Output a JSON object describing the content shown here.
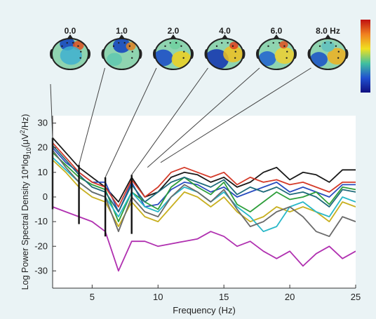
{
  "chart_data": {
    "type": "line",
    "ylabel": "Log Power Spectral Density 10*log",
    "ylabel_sub": "10",
    "ylabel_tail": "(μV",
    "ylabel_sup": "2",
    "ylabel_end": "/Hz)",
    "xlabel": "Frequency (Hz)",
    "xlim": [
      2,
      25
    ],
    "ylim": [
      -37,
      33
    ],
    "x_ticks": [
      5,
      10,
      15,
      20,
      25
    ],
    "y_ticks": [
      30,
      20,
      10,
      0,
      -10,
      -20,
      -30
    ],
    "grid": false,
    "x": [
      2,
      3,
      4,
      5,
      6,
      7,
      8,
      9,
      10,
      11,
      12,
      13,
      14,
      15,
      16,
      17,
      18,
      19,
      20,
      21,
      22,
      23,
      24,
      25
    ],
    "series": [
      {
        "color": "#1a1a1a",
        "values": [
          24,
          18,
          12,
          8,
          4,
          -2,
          8,
          0,
          2,
          8,
          10,
          9,
          6,
          8,
          4,
          6,
          10,
          12,
          7,
          10,
          9,
          6,
          11,
          11
        ]
      },
      {
        "color": "#2a4dbf",
        "values": [
          20,
          14,
          10,
          6,
          6,
          -6,
          6,
          -4,
          -3,
          3,
          6,
          5,
          2,
          4,
          0,
          2,
          4,
          6,
          2,
          4,
          2,
          0,
          5,
          5
        ]
      },
      {
        "color": "#2e9e3a",
        "values": [
          18,
          13,
          8,
          5,
          3,
          -10,
          2,
          -2,
          -5,
          4,
          8,
          4,
          1,
          6,
          -3,
          -6,
          -2,
          2,
          -1,
          0,
          2,
          -3,
          4,
          3
        ]
      },
      {
        "color": "#d43b2a",
        "values": [
          22,
          16,
          10,
          6,
          4,
          -4,
          7,
          0,
          4,
          10,
          12,
          10,
          8,
          10,
          5,
          8,
          6,
          7,
          5,
          6,
          4,
          2,
          6,
          6
        ]
      },
      {
        "color": "#c8b020",
        "values": [
          15,
          10,
          4,
          0,
          -2,
          -12,
          -2,
          -8,
          -10,
          -4,
          2,
          0,
          -4,
          0,
          -6,
          -10,
          -8,
          -4,
          -6,
          -4,
          -6,
          -10,
          -2,
          -4
        ]
      },
      {
        "color": "#b030b0",
        "values": [
          -4,
          -6,
          -8,
          -10,
          -14,
          -30,
          -18,
          -18,
          -20,
          -19,
          -18,
          -17,
          -14,
          -16,
          -20,
          -18,
          -22,
          -25,
          -22,
          -28,
          -23,
          -20,
          -25,
          -22
        ]
      },
      {
        "color": "#2ab8c8",
        "values": [
          16,
          11,
          6,
          2,
          0,
          -8,
          2,
          -4,
          -6,
          0,
          4,
          2,
          -2,
          2,
          -4,
          -8,
          -14,
          -12,
          -4,
          -2,
          -6,
          -8,
          0,
          -2
        ]
      },
      {
        "color": "#1e6b7a",
        "values": [
          21,
          15,
          9,
          4,
          2,
          -6,
          5,
          -2,
          2,
          6,
          8,
          6,
          4,
          7,
          1,
          4,
          2,
          4,
          1,
          2,
          0,
          -4,
          3,
          2
        ]
      },
      {
        "color": "#6a6a6a",
        "values": [
          19,
          12,
          6,
          2,
          0,
          -14,
          0,
          -6,
          -8,
          0,
          5,
          2,
          -2,
          3,
          -5,
          -12,
          -10,
          -6,
          -4,
          -8,
          -14,
          -16,
          -8,
          -10
        ]
      }
    ],
    "vlines": [
      {
        "x": 2,
        "y1": -5,
        "y2": 24
      },
      {
        "x": 4,
        "y1": -11,
        "y2": 13
      },
      {
        "x": 6,
        "y1": -16,
        "y2": 8
      },
      {
        "x": 8,
        "y1": -15,
        "y2": 9
      }
    ],
    "topomaps": [
      {
        "label": "0.0",
        "links_to_x": 2,
        "link_y": 24,
        "blobs": [
          {
            "dx": -0.15,
            "dy": -0.65,
            "r": 0.35,
            "color": "#1040c0"
          },
          {
            "dx": 0.45,
            "dy": -0.55,
            "r": 0.25,
            "color": "#e05020"
          },
          {
            "dx": 0.05,
            "dy": 0.1,
            "r": 0.5,
            "color": "#40b0d0"
          }
        ]
      },
      {
        "label": "1.0",
        "links_to_x": 4,
        "link_y": 13,
        "blobs": [
          {
            "dx": 0.0,
            "dy": -0.55,
            "r": 0.4,
            "color": "#1040c0"
          },
          {
            "dx": 0.5,
            "dy": -0.5,
            "r": 0.22,
            "color": "#e08020"
          },
          {
            "dx": -0.4,
            "dy": 0.35,
            "r": 0.35,
            "color": "#60c8b0"
          }
        ]
      },
      {
        "label": "2.0",
        "links_to_x": 6,
        "link_y": 8,
        "blobs": [
          {
            "dx": -0.55,
            "dy": 0.25,
            "r": 0.45,
            "color": "#1848c8"
          },
          {
            "dx": 0.45,
            "dy": 0.35,
            "r": 0.45,
            "color": "#f0d020"
          },
          {
            "dx": 0.1,
            "dy": -0.6,
            "r": 0.25,
            "color": "#70d0a0"
          }
        ]
      },
      {
        "label": "4.0",
        "links_to_x": 8,
        "link_y": 9,
        "blobs": [
          {
            "dx": -0.45,
            "dy": 0.35,
            "r": 0.55,
            "color": "#1030b0"
          },
          {
            "dx": 0.45,
            "dy": 0.0,
            "r": 0.45,
            "color": "#f0c020"
          },
          {
            "dx": 0.5,
            "dy": -0.55,
            "r": 0.2,
            "color": "#e04020"
          }
        ]
      },
      {
        "label": "6.0",
        "links_to_x": null,
        "blobs": [
          {
            "dx": -0.5,
            "dy": 0.3,
            "r": 0.4,
            "color": "#2060d0"
          },
          {
            "dx": 0.45,
            "dy": 0.1,
            "r": 0.45,
            "color": "#f0d030"
          },
          {
            "dx": 0.4,
            "dy": -0.6,
            "r": 0.2,
            "color": "#e05020"
          }
        ]
      },
      {
        "label": "8.0 Hz",
        "links_to_x": null,
        "blobs": [
          {
            "dx": -0.5,
            "dy": 0.35,
            "r": 0.4,
            "color": "#1850c8"
          },
          {
            "dx": 0.5,
            "dy": 0.15,
            "r": 0.45,
            "color": "#f0b020"
          },
          {
            "dx": 0.0,
            "dy": -0.5,
            "r": 0.3,
            "color": "#60c0c0"
          }
        ]
      }
    ],
    "colorbar": {
      "colors": [
        "#c01010",
        "#f08020",
        "#f0e020",
        "#40c0a0",
        "#2050d0",
        "#101080"
      ]
    }
  }
}
